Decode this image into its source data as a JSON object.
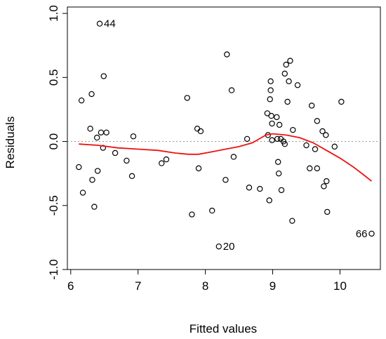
{
  "chart_data": {
    "type": "scatter",
    "title": "",
    "xlabel": "Fitted values",
    "ylabel": "Residuals",
    "xlim": [
      5.95,
      10.6
    ],
    "ylim": [
      -1.0,
      1.05
    ],
    "xticks": [
      6,
      7,
      8,
      9,
      10
    ],
    "yticks": [
      -1.0,
      -0.5,
      0.0,
      0.5,
      1.0
    ],
    "xtick_labels": [
      "6",
      "7",
      "8",
      "9",
      "10"
    ],
    "ytick_labels": [
      "-1.0",
      "-0.5",
      "0.0",
      "0.5",
      "1.0"
    ],
    "reference_line": {
      "y": 0,
      "style": "dotted",
      "color": "#9a9a9a"
    },
    "smoother_color": "#ee1111",
    "points": [
      {
        "x": 6.43,
        "y": 0.92,
        "label": "44"
      },
      {
        "x": 6.12,
        "y": -0.2
      },
      {
        "x": 6.16,
        "y": 0.32
      },
      {
        "x": 6.18,
        "y": -0.4
      },
      {
        "x": 6.29,
        "y": 0.1
      },
      {
        "x": 6.31,
        "y": 0.37
      },
      {
        "x": 6.32,
        "y": -0.3
      },
      {
        "x": 6.35,
        "y": -0.51
      },
      {
        "x": 6.39,
        "y": 0.03
      },
      {
        "x": 6.4,
        "y": -0.23
      },
      {
        "x": 6.45,
        "y": 0.07
      },
      {
        "x": 6.49,
        "y": 0.51
      },
      {
        "x": 6.48,
        "y": -0.05
      },
      {
        "x": 6.53,
        "y": 0.07
      },
      {
        "x": 6.66,
        "y": -0.09
      },
      {
        "x": 6.83,
        "y": -0.15
      },
      {
        "x": 6.91,
        "y": -0.27
      },
      {
        "x": 6.93,
        "y": 0.04
      },
      {
        "x": 7.35,
        "y": -0.17
      },
      {
        "x": 7.42,
        "y": -0.14
      },
      {
        "x": 7.73,
        "y": 0.34
      },
      {
        "x": 7.8,
        "y": -0.57
      },
      {
        "x": 7.88,
        "y": 0.1
      },
      {
        "x": 7.9,
        "y": -0.21
      },
      {
        "x": 7.93,
        "y": 0.08
      },
      {
        "x": 8.1,
        "y": -0.54
      },
      {
        "x": 8.2,
        "y": -0.82,
        "label": "20"
      },
      {
        "x": 8.3,
        "y": -0.3
      },
      {
        "x": 8.32,
        "y": 0.68
      },
      {
        "x": 8.39,
        "y": 0.4
      },
      {
        "x": 8.42,
        "y": -0.12
      },
      {
        "x": 8.62,
        "y": 0.02
      },
      {
        "x": 8.65,
        "y": -0.36
      },
      {
        "x": 8.81,
        "y": -0.37
      },
      {
        "x": 8.92,
        "y": 0.22
      },
      {
        "x": 8.93,
        "y": 0.05
      },
      {
        "x": 8.95,
        "y": -0.46
      },
      {
        "x": 8.96,
        "y": 0.33
      },
      {
        "x": 8.97,
        "y": 0.4
      },
      {
        "x": 8.97,
        "y": 0.47
      },
      {
        "x": 8.98,
        "y": 0.2
      },
      {
        "x": 8.99,
        "y": 0.14
      },
      {
        "x": 8.99,
        "y": 0.01
      },
      {
        "x": 9.06,
        "y": 0.19
      },
      {
        "x": 9.07,
        "y": 0.02
      },
      {
        "x": 9.08,
        "y": -0.16
      },
      {
        "x": 9.09,
        "y": -0.25
      },
      {
        "x": 9.1,
        "y": 0.13
      },
      {
        "x": 9.12,
        "y": 0.02
      },
      {
        "x": 9.13,
        "y": -0.38
      },
      {
        "x": 9.16,
        "y": 0.0
      },
      {
        "x": 9.18,
        "y": -0.02
      },
      {
        "x": 9.18,
        "y": 0.53
      },
      {
        "x": 9.2,
        "y": 0.6
      },
      {
        "x": 9.22,
        "y": 0.31
      },
      {
        "x": 9.24,
        "y": 0.47
      },
      {
        "x": 9.26,
        "y": 0.63
      },
      {
        "x": 9.29,
        "y": -0.62
      },
      {
        "x": 9.3,
        "y": 0.09
      },
      {
        "x": 9.37,
        "y": 0.44
      },
      {
        "x": 9.5,
        "y": -0.03
      },
      {
        "x": 9.55,
        "y": -0.21
      },
      {
        "x": 9.58,
        "y": 0.28
      },
      {
        "x": 9.63,
        "y": -0.06
      },
      {
        "x": 9.66,
        "y": 0.16
      },
      {
        "x": 9.66,
        "y": -0.21
      },
      {
        "x": 9.74,
        "y": 0.08
      },
      {
        "x": 9.76,
        "y": -0.35
      },
      {
        "x": 9.79,
        "y": 0.05
      },
      {
        "x": 9.8,
        "y": -0.31
      },
      {
        "x": 9.81,
        "y": -0.55
      },
      {
        "x": 9.92,
        "y": -0.04
      },
      {
        "x": 10.02,
        "y": 0.31
      },
      {
        "x": 10.47,
        "y": -0.72,
        "label": "66"
      }
    ],
    "smoother": [
      {
        "x": 6.12,
        "y": -0.02
      },
      {
        "x": 6.4,
        "y": -0.03
      },
      {
        "x": 6.7,
        "y": -0.05
      },
      {
        "x": 7.0,
        "y": -0.06
      },
      {
        "x": 7.3,
        "y": -0.07
      },
      {
        "x": 7.55,
        "y": -0.09
      },
      {
        "x": 7.75,
        "y": -0.1
      },
      {
        "x": 7.9,
        "y": -0.1
      },
      {
        "x": 8.1,
        "y": -0.08
      },
      {
        "x": 8.3,
        "y": -0.06
      },
      {
        "x": 8.5,
        "y": -0.04
      },
      {
        "x": 8.7,
        "y": -0.01
      },
      {
        "x": 8.8,
        "y": 0.02
      },
      {
        "x": 8.9,
        "y": 0.05
      },
      {
        "x": 9.0,
        "y": 0.06
      },
      {
        "x": 9.2,
        "y": 0.05
      },
      {
        "x": 9.4,
        "y": 0.03
      },
      {
        "x": 9.6,
        "y": -0.01
      },
      {
        "x": 9.8,
        "y": -0.07
      },
      {
        "x": 10.0,
        "y": -0.13
      },
      {
        "x": 10.2,
        "y": -0.2
      },
      {
        "x": 10.35,
        "y": -0.26
      },
      {
        "x": 10.47,
        "y": -0.31
      }
    ]
  }
}
